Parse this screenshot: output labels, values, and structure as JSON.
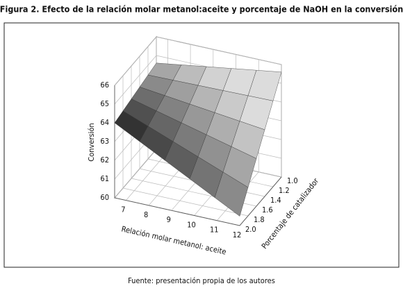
{
  "chart_data": {
    "type": "surface",
    "title": "Figura 2. Efecto de la relación molar metanol:aceite y porcentaje de NaOH en la conversión",
    "xlabel": "Relación molar metanol: aceite",
    "ylabel": "Porcentaje de catalizador",
    "zlabel": "Conversión",
    "x": [
      6.5,
      7.6,
      8.7,
      9.8,
      10.9,
      12
    ],
    "y": [
      1.0,
      1.2,
      1.4,
      1.6,
      1.8,
      2.0
    ],
    "z": [
      [
        64.6,
        64.8,
        65.0,
        65.2,
        65.4,
        65.6
      ],
      [
        64.48,
        64.5,
        64.52,
        64.54,
        64.56,
        64.58
      ],
      [
        64.36,
        64.2,
        64.04,
        63.88,
        63.72,
        63.56
      ],
      [
        64.24,
        63.9,
        63.56,
        63.22,
        62.88,
        62.54
      ],
      [
        64.12,
        63.6,
        63.08,
        62.56,
        62.04,
        61.52
      ],
      [
        64.0,
        63.3,
        62.6,
        61.9,
        61.2,
        60.5
      ]
    ],
    "xlim": [
      6.5,
      12
    ],
    "ylim": [
      1,
      2
    ],
    "zlim": [
      60,
      66
    ],
    "xticks": [
      7,
      8,
      9,
      10,
      11,
      12
    ],
    "yticks": [
      {
        "value": 1,
        "label": "1.0"
      },
      1.2,
      1.4,
      1.6,
      1.8,
      {
        "value": 2,
        "label": "2.0"
      }
    ],
    "zticks": [
      60,
      61,
      62,
      63,
      64,
      65,
      66
    ],
    "grid": true,
    "color": "#808080"
  },
  "source": "Fuente: presentación propia de los autores"
}
